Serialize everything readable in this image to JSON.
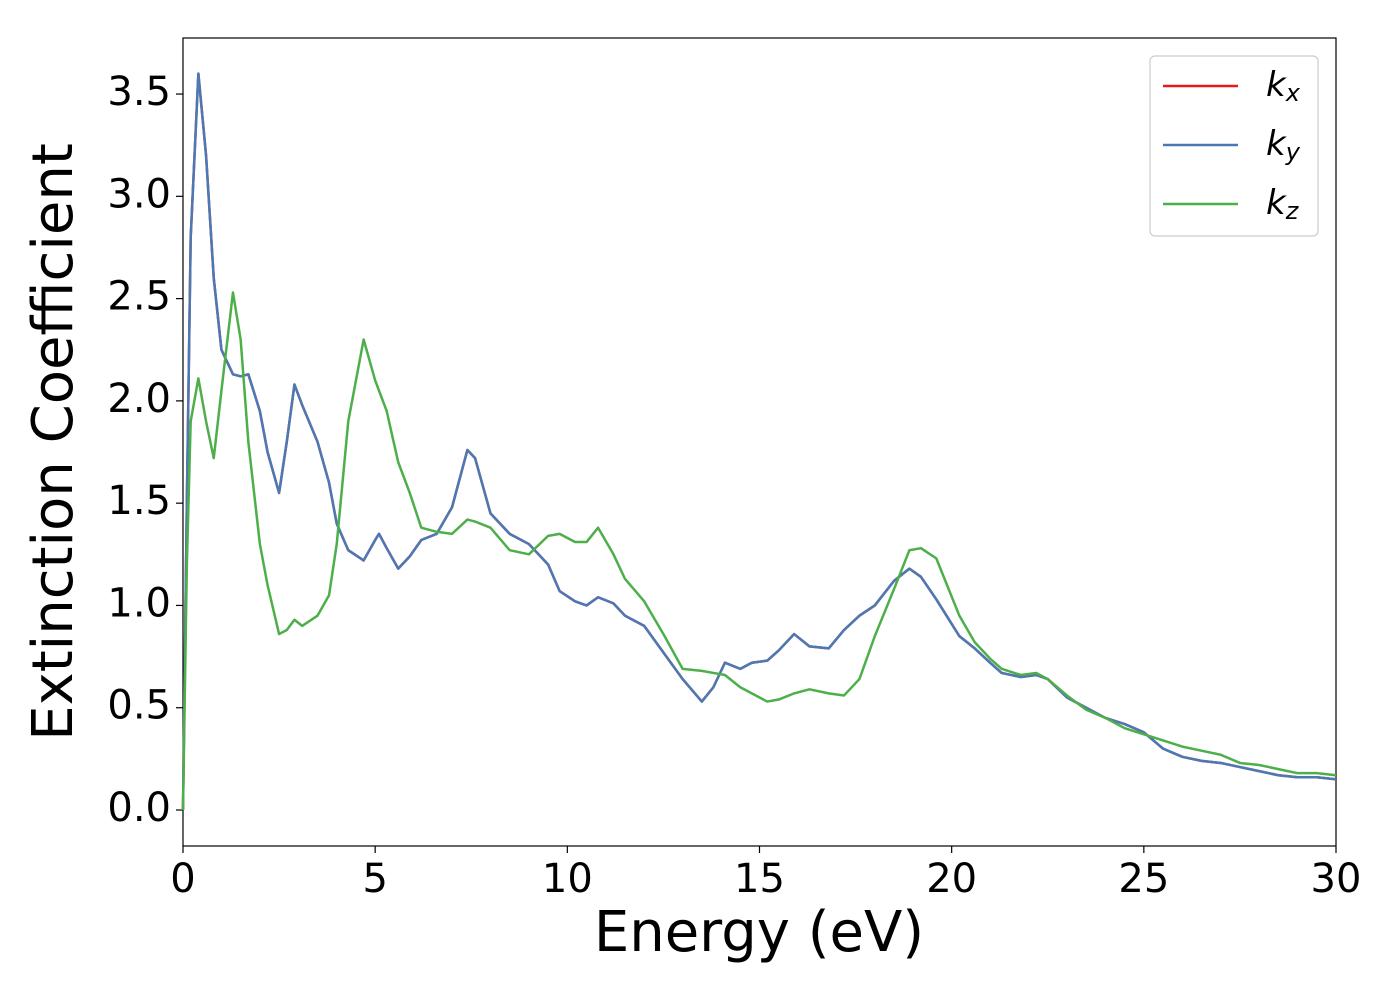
{
  "chart_data": {
    "type": "line",
    "x_label": "Energy (eV)",
    "y_label": "Extinction Coefficient",
    "xlim": [
      0,
      30
    ],
    "ylim": [
      -0.176,
      3.774
    ],
    "xticks": [
      0,
      5,
      10,
      15,
      20,
      25,
      30
    ],
    "yticks": [
      {
        "value": 0,
        "label": "0.0"
      },
      0.5,
      {
        "value": 1,
        "label": "1.0"
      },
      1.5,
      {
        "value": 2,
        "label": "2.0"
      },
      2.5,
      {
        "value": 3,
        "label": "3.0"
      },
      3.5
    ],
    "legend": "upper right",
    "x": [
      0,
      0.1,
      0.2,
      0.4,
      0.6,
      0.8,
      1.0,
      1.3,
      1.5,
      1.7,
      2.0,
      2.2,
      2.5,
      2.7,
      2.9,
      3.1,
      3.5,
      3.8,
      4.0,
      4.3,
      4.7,
      5.0,
      5.1,
      5.3,
      5.6,
      5.9,
      6.2,
      6.6,
      7.0,
      7.4,
      7.6,
      8.0,
      8.5,
      9.0,
      9.5,
      9.8,
      10.2,
      10.5,
      10.8,
      11.2,
      11.5,
      12.0,
      12.5,
      13.0,
      13.5,
      13.8,
      14.1,
      14.5,
      14.8,
      15.2,
      15.5,
      15.9,
      16.3,
      16.8,
      17.2,
      17.6,
      18.0,
      18.5,
      18.9,
      19.2,
      19.6,
      20.2,
      20.6,
      21.0,
      21.3,
      21.8,
      22.2,
      22.5,
      23.0,
      23.5,
      24.0,
      24.5,
      25.0,
      25.5,
      26.0,
      26.5,
      27.0,
      27.5,
      28.0,
      28.5,
      29.0,
      29.5,
      30
    ],
    "series": [
      {
        "name": "kx",
        "color": "#e41a1c",
        "values": [
          0.0,
          1.5,
          2.8,
          3.6,
          3.2,
          2.6,
          2.25,
          2.13,
          2.12,
          2.13,
          1.95,
          1.75,
          1.55,
          1.8,
          2.08,
          1.98,
          1.8,
          1.6,
          1.4,
          1.27,
          1.22,
          1.32,
          1.35,
          1.28,
          1.18,
          1.24,
          1.32,
          1.35,
          1.48,
          1.76,
          1.72,
          1.45,
          1.35,
          1.3,
          1.2,
          1.07,
          1.02,
          1.0,
          1.04,
          1.01,
          0.95,
          0.9,
          0.77,
          0.64,
          0.53,
          0.6,
          0.72,
          0.69,
          0.72,
          0.73,
          0.78,
          0.86,
          0.8,
          0.79,
          0.88,
          0.95,
          1.0,
          1.12,
          1.18,
          1.14,
          1.03,
          0.85,
          0.79,
          0.72,
          0.67,
          0.65,
          0.66,
          0.64,
          0.55,
          0.5,
          0.45,
          0.42,
          0.38,
          0.3,
          0.26,
          0.24,
          0.23,
          0.21,
          0.19,
          0.17,
          0.16,
          0.16,
          0.15
        ]
      },
      {
        "name": "ky",
        "color": "#4a7ab5",
        "values": [
          0.0,
          1.5,
          2.8,
          3.6,
          3.2,
          2.6,
          2.25,
          2.13,
          2.12,
          2.13,
          1.95,
          1.75,
          1.55,
          1.8,
          2.08,
          1.98,
          1.8,
          1.6,
          1.4,
          1.27,
          1.22,
          1.32,
          1.35,
          1.28,
          1.18,
          1.24,
          1.32,
          1.35,
          1.48,
          1.76,
          1.72,
          1.45,
          1.35,
          1.3,
          1.2,
          1.07,
          1.02,
          1.0,
          1.04,
          1.01,
          0.95,
          0.9,
          0.77,
          0.64,
          0.53,
          0.6,
          0.72,
          0.69,
          0.72,
          0.73,
          0.78,
          0.86,
          0.8,
          0.79,
          0.88,
          0.95,
          1.0,
          1.12,
          1.18,
          1.14,
          1.03,
          0.85,
          0.79,
          0.72,
          0.67,
          0.65,
          0.66,
          0.64,
          0.55,
          0.5,
          0.45,
          0.42,
          0.38,
          0.3,
          0.26,
          0.24,
          0.23,
          0.21,
          0.19,
          0.17,
          0.16,
          0.16,
          0.15
        ]
      },
      {
        "name": "kz",
        "color": "#4daf4a",
        "values": [
          0.0,
          1.2,
          1.9,
          2.11,
          1.9,
          1.72,
          2.05,
          2.53,
          2.3,
          1.8,
          1.3,
          1.1,
          0.86,
          0.88,
          0.93,
          0.9,
          0.95,
          1.05,
          1.3,
          1.9,
          2.3,
          2.1,
          2.05,
          1.95,
          1.7,
          1.55,
          1.38,
          1.36,
          1.35,
          1.42,
          1.41,
          1.38,
          1.27,
          1.25,
          1.34,
          1.35,
          1.31,
          1.31,
          1.38,
          1.25,
          1.13,
          1.02,
          0.86,
          0.69,
          0.68,
          0.67,
          0.66,
          0.6,
          0.57,
          0.53,
          0.54,
          0.57,
          0.59,
          0.57,
          0.56,
          0.64,
          0.85,
          1.08,
          1.27,
          1.28,
          1.23,
          0.95,
          0.82,
          0.74,
          0.69,
          0.66,
          0.67,
          0.64,
          0.56,
          0.49,
          0.45,
          0.4,
          0.37,
          0.34,
          0.31,
          0.29,
          0.27,
          0.23,
          0.22,
          0.2,
          0.18,
          0.18,
          0.17
        ]
      }
    ]
  }
}
